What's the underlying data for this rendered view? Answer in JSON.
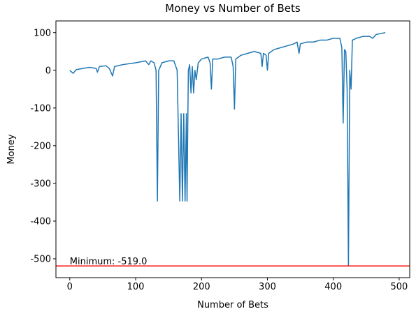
{
  "chart_data": {
    "type": "line",
    "title": "Money vs Number of Bets",
    "x_label": "Number of Bets",
    "y_label": "Money",
    "x": [
      0,
      5,
      10,
      20,
      30,
      40,
      42,
      45,
      55,
      60,
      65,
      68,
      80,
      100,
      115,
      120,
      123,
      128,
      131,
      133,
      135,
      140,
      150,
      158,
      163,
      167,
      169,
      171,
      173,
      175,
      177,
      178,
      180,
      182,
      184,
      186,
      188,
      190,
      192,
      195,
      200,
      210,
      213,
      215,
      217,
      225,
      235,
      245,
      248,
      250,
      252,
      260,
      270,
      280,
      290,
      292,
      294,
      298,
      300,
      302,
      310,
      320,
      330,
      340,
      345,
      348,
      350,
      360,
      370,
      380,
      390,
      400,
      410,
      413,
      415,
      417,
      419,
      421,
      423,
      425,
      427,
      429,
      435,
      445,
      455,
      460,
      465,
      479
    ],
    "values": [
      0,
      -8,
      2,
      5,
      8,
      5,
      -5,
      10,
      12,
      5,
      -15,
      10,
      15,
      20,
      25,
      15,
      25,
      20,
      0,
      -347,
      0,
      20,
      25,
      25,
      0,
      -347,
      -115,
      -347,
      -115,
      -347,
      -115,
      -347,
      0,
      15,
      -60,
      10,
      -60,
      0,
      -25,
      20,
      30,
      35,
      20,
      -50,
      30,
      30,
      35,
      35,
      10,
      -103,
      30,
      40,
      45,
      50,
      45,
      10,
      45,
      40,
      0,
      45,
      55,
      60,
      65,
      70,
      75,
      45,
      70,
      75,
      75,
      80,
      80,
      85,
      85,
      60,
      -140,
      55,
      50,
      -50,
      -519,
      0,
      -50,
      80,
      85,
      90,
      90,
      85,
      95,
      100
    ],
    "color": "#1f77b4",
    "xlim": [
      -21,
      516
    ],
    "ylim": [
      -550,
      131
    ],
    "xticks": [
      0,
      100,
      200,
      300,
      400,
      500
    ],
    "yticks": [
      -500,
      -400,
      -300,
      -200,
      -100,
      0,
      100
    ],
    "hline": {
      "value": -519,
      "color": "#ff0000",
      "label": "Minimum: -519.0"
    }
  }
}
